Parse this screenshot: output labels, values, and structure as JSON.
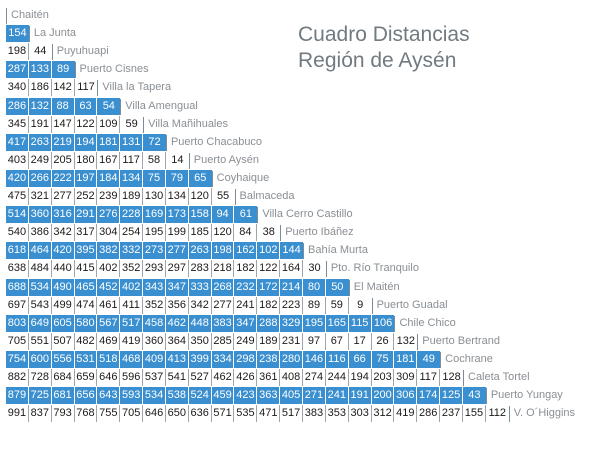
{
  "title": {
    "line1": "Cuadro Distancias",
    "line2": "Región de Aysén"
  },
  "table": {
    "rows": [
      {
        "name": "Chaitén",
        "values": []
      },
      {
        "name": "La Junta",
        "values": [
          "154"
        ]
      },
      {
        "name": "Puyuhuapi",
        "values": [
          "198",
          "44"
        ]
      },
      {
        "name": "Puerto Cisnes",
        "values": [
          "287",
          "133",
          "89"
        ]
      },
      {
        "name": "Villa la Tapera",
        "values": [
          "340",
          "186",
          "142",
          "117"
        ]
      },
      {
        "name": "Villa Amengual",
        "values": [
          "286",
          "132",
          "88",
          "63",
          "54"
        ]
      },
      {
        "name": "Villa Mañihuales",
        "values": [
          "345",
          "191",
          "147",
          "122",
          "109",
          "59"
        ]
      },
      {
        "name": "Puerto Chacabuco",
        "values": [
          "417",
          "263",
          "219",
          "194",
          "181",
          "131",
          "72"
        ]
      },
      {
        "name": "Puerto Aysén",
        "values": [
          "403",
          "249",
          "205",
          "180",
          "167",
          "117",
          "58",
          "14"
        ]
      },
      {
        "name": "Coyhaique",
        "values": [
          "420",
          "266",
          "222",
          "197",
          "184",
          "134",
          "75",
          "79",
          "65"
        ]
      },
      {
        "name": "Balmaceda",
        "values": [
          "475",
          "321",
          "277",
          "252",
          "239",
          "189",
          "130",
          "134",
          "120",
          "55"
        ]
      },
      {
        "name": "Villa Cerro Castillo",
        "values": [
          "514",
          "360",
          "316",
          "291",
          "276",
          "228",
          "169",
          "173",
          "158",
          "94",
          "61"
        ]
      },
      {
        "name": "Puerto Ibáñez",
        "values": [
          "540",
          "386",
          "342",
          "317",
          "304",
          "254",
          "195",
          "199",
          "185",
          "120",
          "84",
          "38"
        ]
      },
      {
        "name": "Bahía Murta",
        "values": [
          "618",
          "464",
          "420",
          "395",
          "382",
          "332",
          "273",
          "277",
          "263",
          "198",
          "162",
          "102",
          "144"
        ]
      },
      {
        "name": "Pto. Río Tranquilo",
        "values": [
          "638",
          "484",
          "440",
          "415",
          "402",
          "352",
          "293",
          "297",
          "283",
          "218",
          "182",
          "122",
          "164",
          "30"
        ]
      },
      {
        "name": "El Maitén",
        "values": [
          "688",
          "534",
          "490",
          "465",
          "452",
          "402",
          "343",
          "347",
          "333",
          "268",
          "232",
          "172",
          "214",
          "80",
          "50"
        ]
      },
      {
        "name": "Puerto Guadal",
        "values": [
          "697",
          "543",
          "499",
          "474",
          "461",
          "411",
          "352",
          "356",
          "342",
          "277",
          "241",
          "182",
          "223",
          "89",
          "59",
          "9"
        ]
      },
      {
        "name": "Chile Chico",
        "values": [
          "803",
          "649",
          "605",
          "580",
          "567",
          "517",
          "458",
          "462",
          "448",
          "383",
          "347",
          "288",
          "329",
          "195",
          "165",
          "115",
          "106"
        ]
      },
      {
        "name": "Puerto Bertrand",
        "values": [
          "705",
          "551",
          "507",
          "482",
          "469",
          "419",
          "360",
          "364",
          "350",
          "285",
          "249",
          "189",
          "231",
          "97",
          "67",
          "17",
          "26",
          "132"
        ]
      },
      {
        "name": "Cochrane",
        "values": [
          "754",
          "600",
          "556",
          "531",
          "518",
          "468",
          "409",
          "413",
          "399",
          "334",
          "298",
          "238",
          "280",
          "146",
          "116",
          "66",
          "75",
          "181",
          "49"
        ]
      },
      {
        "name": "Caleta Tortel",
        "values": [
          "882",
          "728",
          "684",
          "659",
          "646",
          "596",
          "537",
          "541",
          "527",
          "462",
          "426",
          "361",
          "408",
          "274",
          "244",
          "194",
          "203",
          "309",
          "117",
          "128"
        ]
      },
      {
        "name": "Puerto Yungay",
        "values": [
          "879",
          "725",
          "681",
          "656",
          "643",
          "593",
          "534",
          "538",
          "524",
          "459",
          "423",
          "363",
          "405",
          "271",
          "241",
          "191",
          "200",
          "306",
          "174",
          "125",
          "43"
        ]
      },
      {
        "name": "V. O´Higgins",
        "values": [
          "991",
          "837",
          "793",
          "768",
          "755",
          "705",
          "646",
          "650",
          "636",
          "571",
          "535",
          "471",
          "517",
          "383",
          "353",
          "303",
          "312",
          "419",
          "286",
          "237",
          "155",
          "112"
        ]
      }
    ],
    "highlight_color": "#3a8fd0"
  }
}
